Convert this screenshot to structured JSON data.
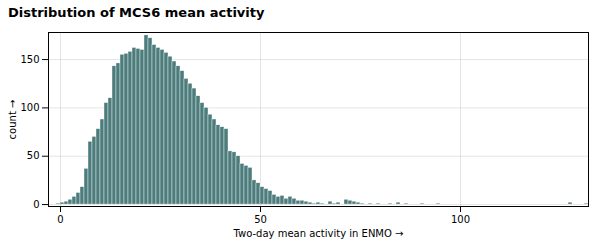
{
  "chart_data": {
    "type": "histogram",
    "title": "Distribution of MCS6 mean activity",
    "xlabel": "Two-day mean activity in ENMO",
    "ylabel": "count",
    "color": "#4d7c7c",
    "bins": [
      -1,
      0,
      1,
      2,
      3,
      4,
      5,
      6,
      7,
      8,
      9,
      10,
      11,
      12,
      13,
      14,
      15,
      16,
      17,
      18,
      19,
      20,
      21,
      22,
      23,
      24,
      25,
      26,
      27,
      28,
      29,
      30,
      31,
      32,
      33,
      34,
      35,
      36,
      37,
      38,
      39,
      40,
      41,
      42,
      43,
      44,
      45,
      46,
      47,
      48,
      49,
      50,
      51,
      52,
      53,
      54,
      55,
      56,
      57,
      58,
      59,
      60,
      61,
      62,
      63,
      64,
      65,
      66,
      67,
      68,
      69,
      70,
      71,
      72,
      73,
      74,
      75,
      76,
      77,
      78,
      79,
      80,
      81,
      82,
      83,
      84,
      85,
      86,
      87,
      88,
      89,
      90,
      91,
      92,
      93,
      94,
      95,
      96,
      97,
      98,
      99,
      100,
      101,
      102,
      103,
      104,
      105,
      106,
      107,
      108,
      109,
      110,
      111,
      112,
      113,
      114,
      115,
      116,
      117,
      118,
      119,
      120,
      121,
      122,
      123,
      124,
      125,
      126,
      127,
      128,
      129,
      130,
      131,
      132,
      133,
      134,
      135
    ],
    "values": [
      1,
      2,
      3,
      5,
      8,
      12,
      18,
      37,
      65,
      70,
      78,
      88,
      105,
      110,
      143,
      146,
      155,
      156,
      158,
      162,
      161,
      160,
      175,
      172,
      165,
      162,
      160,
      157,
      153,
      148,
      143,
      138,
      130,
      125,
      120,
      112,
      105,
      100,
      93,
      88,
      82,
      80,
      78,
      55,
      54,
      50,
      42,
      40,
      38,
      25,
      22,
      18,
      16,
      14,
      10,
      8,
      9,
      6,
      8,
      6,
      4,
      4,
      3,
      2,
      1,
      2,
      1,
      0,
      3,
      1,
      2,
      0,
      5,
      4,
      3,
      2,
      1,
      0,
      1,
      0,
      1,
      0,
      0,
      1,
      0,
      2,
      0,
      1,
      0,
      0,
      0,
      1,
      0,
      0,
      0,
      1,
      0,
      0,
      0,
      0,
      0,
      0,
      0,
      0,
      0,
      0,
      0,
      0,
      0,
      0,
      0,
      0,
      0,
      0,
      0,
      0,
      0,
      0,
      0,
      0,
      0,
      0,
      0,
      0,
      0,
      0,
      0,
      0,
      2,
      0,
      0,
      0,
      1,
      0,
      0,
      0
    ],
    "xlim": [
      -3,
      132
    ],
    "ylim": [
      -2,
      178
    ],
    "xticks": [
      0,
      50,
      100
    ],
    "yticks": [
      0,
      50,
      100,
      150
    ],
    "grid": true
  }
}
